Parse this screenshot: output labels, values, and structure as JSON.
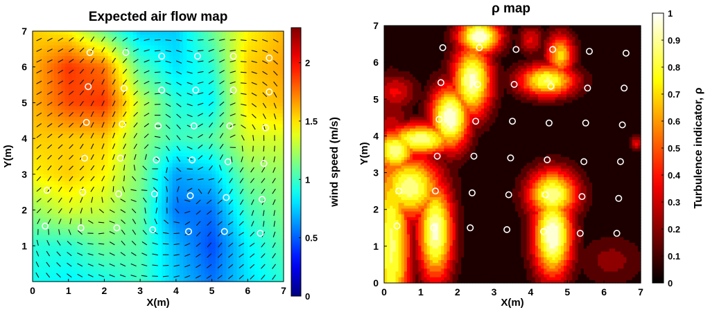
{
  "chart_data": [
    {
      "type": "heatmap",
      "title": "Expected air flow map",
      "xlabel": "X(m)",
      "ylabel": "Y(m)",
      "xlim": [
        0,
        7
      ],
      "ylim": [
        0,
        7
      ],
      "xticks": [
        0,
        1,
        2,
        3,
        4,
        5,
        6,
        7
      ],
      "yticks": [
        1,
        2,
        3,
        4,
        5,
        6,
        7
      ],
      "colorbar": {
        "label": "wind speed (m/s)",
        "range": [
          0,
          2.3
        ],
        "ticks": [
          0,
          0.5,
          1,
          1.5,
          2
        ],
        "colormap": "jet"
      },
      "overlay": "wind direction vector arrows",
      "sensors": [
        [
          1.6,
          6.4
        ],
        [
          2.6,
          6.4
        ],
        [
          3.6,
          6.3
        ],
        [
          4.6,
          6.3
        ],
        [
          5.6,
          6.3
        ],
        [
          6.6,
          6.25
        ],
        [
          1.55,
          5.45
        ],
        [
          2.55,
          5.4
        ],
        [
          3.6,
          5.35
        ],
        [
          4.55,
          5.35
        ],
        [
          5.6,
          5.35
        ],
        [
          6.6,
          5.3
        ],
        [
          1.5,
          4.45
        ],
        [
          2.5,
          4.4
        ],
        [
          3.5,
          4.35
        ],
        [
          4.5,
          4.35
        ],
        [
          5.5,
          4.35
        ],
        [
          6.5,
          4.3
        ],
        [
          1.45,
          3.45
        ],
        [
          2.45,
          3.45
        ],
        [
          3.45,
          3.4
        ],
        [
          4.45,
          3.4
        ],
        [
          5.45,
          3.35
        ],
        [
          6.45,
          3.3
        ],
        [
          0.4,
          2.55
        ],
        [
          1.4,
          2.5
        ],
        [
          2.4,
          2.45
        ],
        [
          3.4,
          2.45
        ],
        [
          4.4,
          2.4
        ],
        [
          5.4,
          2.35
        ],
        [
          6.4,
          2.3
        ],
        [
          0.35,
          1.55
        ],
        [
          1.35,
          1.5
        ],
        [
          2.35,
          1.5
        ],
        [
          3.35,
          1.45
        ],
        [
          4.35,
          1.4
        ],
        [
          5.35,
          1.4
        ],
        [
          6.35,
          1.35
        ]
      ],
      "speed_grid": {
        "x": [
          0,
          1,
          2,
          3,
          4,
          5,
          6,
          7
        ],
        "y": [
          0,
          1,
          2,
          3,
          4,
          5,
          6,
          7
        ],
        "values": [
          [
            0.9,
            0.85,
            0.9,
            1.0,
            0.75,
            0.55,
            0.8,
            0.95
          ],
          [
            0.95,
            0.95,
            1.1,
            1.05,
            0.7,
            0.45,
            0.85,
            1.05
          ],
          [
            1.2,
            1.35,
            1.3,
            1.1,
            0.55,
            0.55,
            1.0,
            1.15
          ],
          [
            1.45,
            1.55,
            1.45,
            1.15,
            0.65,
            0.75,
            1.15,
            1.2
          ],
          [
            1.55,
            1.55,
            1.55,
            1.2,
            1.0,
            1.05,
            1.35,
            1.35
          ],
          [
            1.6,
            1.85,
            1.9,
            1.3,
            0.95,
            0.85,
            1.5,
            1.6
          ],
          [
            1.6,
            1.9,
            1.75,
            1.05,
            0.8,
            0.95,
            1.55,
            1.65
          ],
          [
            1.55,
            1.45,
            1.1,
            0.75,
            0.75,
            1.1,
            1.45,
            1.6
          ]
        ]
      }
    },
    {
      "type": "heatmap",
      "title": "ρ map",
      "xlabel": "X(m)",
      "ylabel": "Y(m)",
      "xlim": [
        0,
        7
      ],
      "ylim": [
        0,
        7
      ],
      "xticks": [
        0,
        1,
        2,
        3,
        4,
        5,
        6,
        7
      ],
      "yticks": [
        0,
        1,
        2,
        3,
        4,
        5,
        6,
        7
      ],
      "colorbar": {
        "label": "Turbulence indicator, ρ",
        "range": [
          0,
          1
        ],
        "ticks": [
          0,
          0.1,
          0.2,
          0.3,
          0.4,
          0.5,
          0.6,
          0.7,
          0.8,
          0.9,
          1
        ],
        "colormap": "hot"
      },
      "sensors": [
        [
          1.6,
          6.4
        ],
        [
          2.6,
          6.4
        ],
        [
          3.6,
          6.35
        ],
        [
          4.6,
          6.35
        ],
        [
          5.6,
          6.3
        ],
        [
          6.6,
          6.25
        ],
        [
          1.55,
          5.45
        ],
        [
          2.55,
          5.4
        ],
        [
          3.55,
          5.4
        ],
        [
          4.55,
          5.35
        ],
        [
          5.55,
          5.3
        ],
        [
          6.55,
          5.3
        ],
        [
          1.5,
          4.45
        ],
        [
          2.5,
          4.4
        ],
        [
          3.5,
          4.4
        ],
        [
          4.5,
          4.35
        ],
        [
          5.5,
          4.35
        ],
        [
          6.5,
          4.3
        ],
        [
          1.45,
          3.45
        ],
        [
          2.45,
          3.45
        ],
        [
          3.45,
          3.4
        ],
        [
          4.45,
          3.35
        ],
        [
          5.45,
          3.3
        ],
        [
          6.45,
          3.3
        ],
        [
          0.4,
          2.5
        ],
        [
          1.4,
          2.5
        ],
        [
          2.4,
          2.45
        ],
        [
          3.4,
          2.4
        ],
        [
          4.4,
          2.4
        ],
        [
          5.4,
          2.35
        ],
        [
          6.4,
          2.3
        ],
        [
          0.35,
          1.55
        ],
        [
          1.35,
          1.5
        ],
        [
          2.35,
          1.5
        ],
        [
          3.35,
          1.45
        ],
        [
          4.35,
          1.4
        ],
        [
          5.35,
          1.35
        ],
        [
          6.35,
          1.35
        ]
      ],
      "rho_blobs": [
        [
          0.2,
          1.0,
          0.55,
          3.2,
          0.85
        ],
        [
          1.4,
          1.4,
          0.5,
          1.4,
          0.95
        ],
        [
          0.7,
          2.6,
          0.9,
          0.9,
          0.9
        ],
        [
          0.3,
          3.6,
          0.6,
          0.6,
          0.9
        ],
        [
          1.0,
          3.9,
          1.0,
          0.45,
          0.9
        ],
        [
          1.8,
          4.5,
          0.55,
          0.9,
          1.0
        ],
        [
          2.4,
          5.5,
          0.55,
          1.0,
          0.95
        ],
        [
          2.6,
          6.7,
          0.6,
          0.5,
          1.0
        ],
        [
          0.3,
          5.2,
          0.6,
          0.5,
          0.35
        ],
        [
          4.6,
          1.3,
          0.55,
          1.2,
          1.0
        ],
        [
          4.6,
          2.4,
          0.7,
          0.7,
          0.9
        ],
        [
          4.45,
          5.5,
          0.8,
          0.45,
          0.85
        ],
        [
          4.8,
          6.2,
          0.4,
          0.6,
          0.7
        ],
        [
          4.0,
          6.6,
          0.35,
          0.4,
          0.35
        ],
        [
          6.9,
          3.8,
          0.2,
          0.2,
          0.35
        ],
        [
          6.2,
          0.6,
          0.9,
          0.7,
          0.2
        ]
      ]
    }
  ]
}
